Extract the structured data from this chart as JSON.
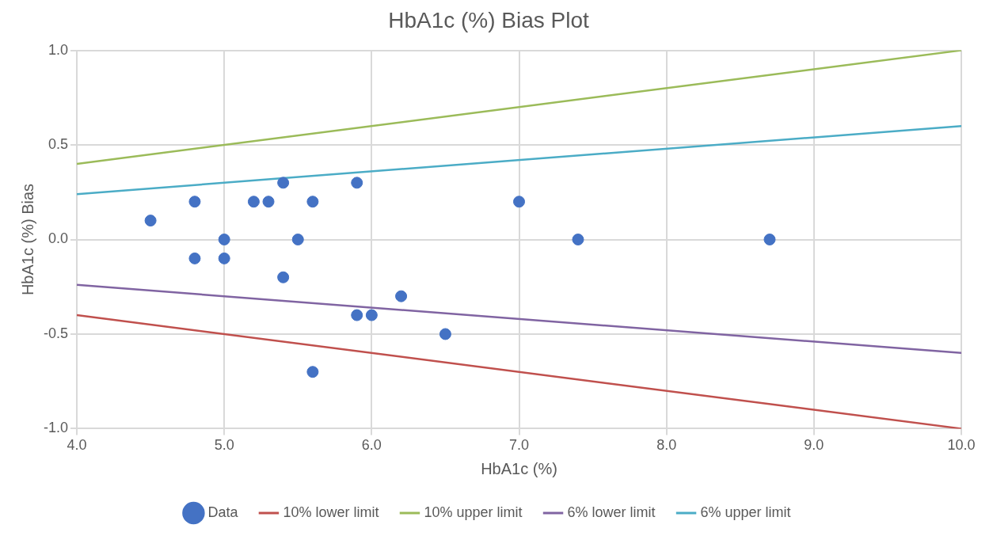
{
  "chart_data": {
    "type": "scatter",
    "title": "HbA1c (%) Bias Plot",
    "xlabel": "HbA1c (%)",
    "ylabel": "HbA1c (%) Bias",
    "xlim": [
      4,
      10
    ],
    "xticks": [
      {
        "value": 4,
        "label": "4.0"
      },
      {
        "value": 5,
        "label": "5.0"
      },
      {
        "value": 6,
        "label": "6.0"
      },
      {
        "value": 7,
        "label": "7.0"
      },
      {
        "value": 8,
        "label": "8.0"
      },
      {
        "value": 9,
        "label": "9.0"
      },
      {
        "value": 10,
        "label": "10.0"
      }
    ],
    "ylim": [
      -1,
      1
    ],
    "yticks": [
      {
        "value": -1,
        "label": "-1.0"
      },
      {
        "value": -0.5,
        "label": "-0.5"
      },
      {
        "value": 0,
        "label": "0.0"
      },
      {
        "value": 0.5,
        "label": "0.5"
      },
      {
        "value": 1,
        "label": "1.0"
      }
    ],
    "grid": true,
    "legend": "bottom",
    "series": [
      {
        "name": "Data",
        "marker": "circle",
        "color": "#4472c4",
        "x": [
          4.5,
          4.8,
          4.8,
          5.0,
          5.0,
          5.2,
          5.3,
          5.4,
          5.4,
          5.5,
          5.6,
          5.6,
          5.9,
          5.9,
          6.0,
          6.2,
          6.5,
          7.0,
          7.4,
          8.7
        ],
        "values": [
          0.1,
          0.2,
          -0.1,
          0.0,
          -0.1,
          0.2,
          0.2,
          0.3,
          -0.2,
          0.0,
          0.2,
          -0.7,
          0.3,
          -0.4,
          -0.4,
          -0.3,
          -0.5,
          0.2,
          0.0,
          0.0
        ]
      },
      {
        "name": "10% lower limit",
        "type": "line",
        "marker": "none",
        "color": "#c0504d",
        "x": [
          4,
          10
        ],
        "values": [
          -0.4,
          -1.0
        ]
      },
      {
        "name": "10% upper limit",
        "type": "line",
        "marker": "none",
        "color": "#9bbb59",
        "x": [
          4,
          10
        ],
        "values": [
          0.4,
          1.0
        ]
      },
      {
        "name": "6% lower limit",
        "type": "line",
        "marker": "none",
        "color": "#8064a2",
        "x": [
          4,
          10
        ],
        "values": [
          -0.24,
          -0.6
        ]
      },
      {
        "name": "6% upper limit",
        "type": "line",
        "marker": "none",
        "color": "#4bacc6",
        "x": [
          4,
          10
        ],
        "values": [
          0.24,
          0.6
        ]
      }
    ]
  }
}
